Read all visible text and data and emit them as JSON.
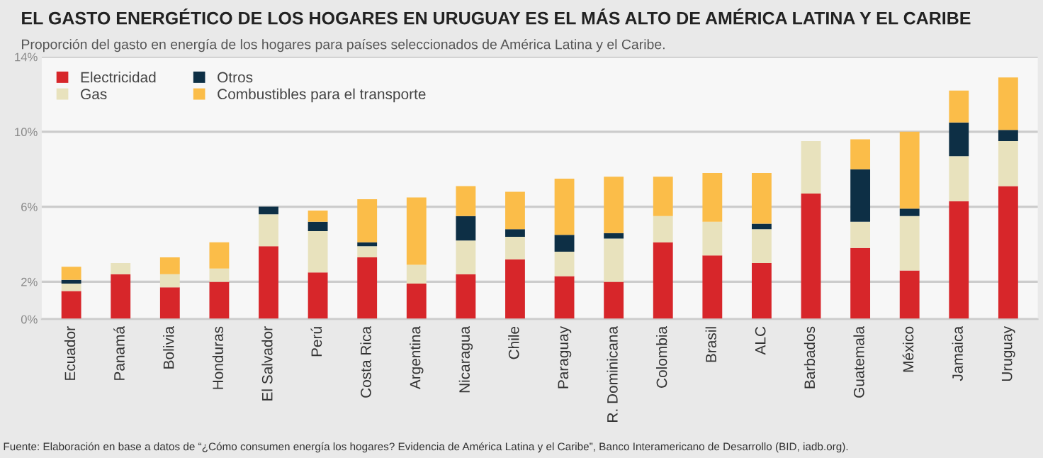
{
  "chart_data": {
    "type": "bar",
    "stacked": true,
    "title": "EL GASTO ENERGÉTICO DE LOS HOGARES EN URUGUAY ES EL MÁS ALTO DE AMÉRICA LATINA Y EL CARIBE",
    "subtitle": "Proporción del gasto en energía de los hogares para países seleccionados de América Latina y el Caribe.",
    "categories": [
      "Ecuador",
      "Panamá",
      "Bolivia",
      "Honduras",
      "El Salvador",
      "Perú",
      "Costa Rica",
      "Argentina",
      "Nicaragua",
      "Chile",
      "Paraguay",
      "R. Dominicana",
      "Colombia",
      "Brasil",
      "ALC",
      "Barbados",
      "Guatemala",
      "México",
      "Jamaica",
      "Uruguay"
    ],
    "series": [
      {
        "name": "Electricidad",
        "color": "#d7262a",
        "values": [
          1.5,
          2.4,
          1.7,
          2.0,
          3.9,
          2.5,
          3.3,
          1.9,
          2.4,
          3.2,
          2.3,
          2.0,
          4.1,
          3.4,
          3.0,
          6.7,
          3.8,
          2.6,
          6.3,
          7.1
        ]
      },
      {
        "name": "Gas",
        "color": "#e8e2bd",
        "values": [
          0.4,
          0.6,
          0.7,
          0.7,
          1.7,
          2.2,
          0.6,
          1.0,
          1.8,
          1.2,
          1.3,
          2.3,
          1.4,
          1.8,
          1.8,
          2.8,
          1.4,
          2.9,
          2.4,
          2.4
        ]
      },
      {
        "name": "Otros",
        "color": "#0d2f45",
        "values": [
          0.2,
          0,
          0,
          0,
          0.4,
          0.5,
          0.2,
          0,
          1.3,
          0.4,
          0.9,
          0.3,
          0,
          0,
          0.3,
          0,
          2.8,
          0.4,
          1.8,
          0.6
        ]
      },
      {
        "name": "Combustibles para el transporte",
        "color": "#fbbd49",
        "values": [
          0.7,
          0,
          0.9,
          1.4,
          0,
          0.6,
          2.3,
          3.6,
          1.6,
          2.0,
          3.0,
          3.0,
          2.1,
          2.6,
          2.7,
          0,
          1.6,
          4.1,
          1.7,
          2.8
        ]
      }
    ],
    "ylim": [
      0,
      14
    ],
    "yticks": [
      {
        "value": 0,
        "label": "0%"
      },
      {
        "value": 2,
        "label": "2%"
      },
      {
        "value": 6,
        "label": "6%"
      },
      {
        "value": 10,
        "label": "10%"
      },
      {
        "value": 14,
        "label": "14%"
      }
    ],
    "grid": "y",
    "legend": "top left",
    "annotations": [
      "Fuente: Elaboración en base a datos de “¿Cómo consumen energía los hogares? Evidencia de América Latina y el Caribe”, Banco Interamericano de Desarrollo (BID, iadb.org)."
    ]
  }
}
